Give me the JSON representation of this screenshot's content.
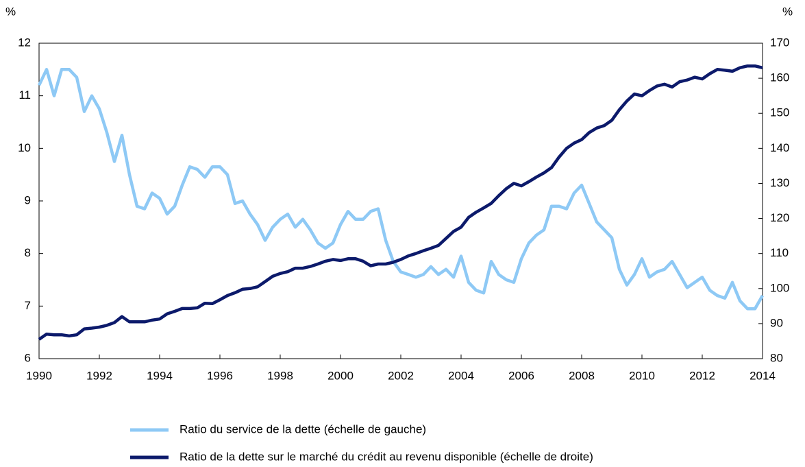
{
  "chart_data": {
    "type": "line",
    "ylabel": "%",
    "y2label": "%",
    "x": [
      1990,
      1990.25,
      1990.5,
      1990.75,
      1991,
      1991.25,
      1991.5,
      1991.75,
      1992,
      1992.25,
      1992.5,
      1992.75,
      1993,
      1993.25,
      1993.5,
      1993.75,
      1994,
      1994.25,
      1994.5,
      1994.75,
      1995,
      1995.25,
      1995.5,
      1995.75,
      1996,
      1996.25,
      1996.5,
      1996.75,
      1997,
      1997.25,
      1997.5,
      1997.75,
      1998,
      1998.25,
      1998.5,
      1998.75,
      1999,
      1999.25,
      1999.5,
      1999.75,
      2000,
      2000.25,
      2000.5,
      2000.75,
      2001,
      2001.25,
      2001.5,
      2001.75,
      2002,
      2002.25,
      2002.5,
      2002.75,
      2003,
      2003.25,
      2003.5,
      2003.75,
      2004,
      2004.25,
      2004.5,
      2004.75,
      2005,
      2005.25,
      2005.5,
      2005.75,
      2006,
      2006.25,
      2006.5,
      2006.75,
      2007,
      2007.25,
      2007.5,
      2007.75,
      2008,
      2008.25,
      2008.5,
      2008.75,
      2009,
      2009.25,
      2009.5,
      2009.75,
      2010,
      2010.25,
      2010.5,
      2010.75,
      2011,
      2011.25,
      2011.5,
      2011.75,
      2012,
      2012.25,
      2012.5,
      2012.75,
      2013,
      2013.25,
      2013.5,
      2013.75,
      2014
    ],
    "xlim": [
      1990,
      2014
    ],
    "xticks": [
      1990,
      1992,
      1994,
      1996,
      1998,
      2000,
      2002,
      2004,
      2006,
      2008,
      2010,
      2012,
      2014
    ],
    "ylim": [
      6,
      12
    ],
    "yticks": [
      6,
      7,
      8,
      9,
      10,
      11,
      12
    ],
    "y2lim": [
      80,
      170
    ],
    "y2ticks": [
      80,
      90,
      100,
      110,
      120,
      130,
      140,
      150,
      160,
      170
    ],
    "legend": "bottom",
    "series": [
      {
        "name": "Ratio du service de la dette (échelle de gauche)",
        "color": "#8ec9f5",
        "values": [
          11.2,
          11.5,
          11.0,
          11.5,
          11.5,
          11.35,
          10.7,
          11.0,
          10.75,
          10.3,
          9.75,
          10.25,
          9.5,
          8.9,
          8.85,
          9.15,
          9.05,
          8.75,
          8.9,
          9.3,
          9.65,
          9.6,
          9.45,
          9.65,
          9.65,
          9.5,
          8.95,
          9.0,
          8.75,
          8.55,
          8.25,
          8.5,
          8.65,
          8.75,
          8.5,
          8.65,
          8.45,
          8.2,
          8.1,
          8.2,
          8.55,
          8.8,
          8.65,
          8.65,
          8.8,
          8.85,
          8.25,
          7.85,
          7.65,
          7.6,
          7.55,
          7.6,
          7.75,
          7.6,
          7.7,
          7.55,
          7.95,
          7.45,
          7.3,
          7.25,
          7.85,
          7.6,
          7.5,
          7.45,
          7.9,
          8.2,
          8.35,
          8.45,
          8.9,
          8.9,
          8.85,
          9.15,
          9.3,
          8.95,
          8.6,
          8.45,
          8.3,
          7.7,
          7.4,
          7.6,
          7.9,
          7.55,
          7.65,
          7.7,
          7.85,
          7.6,
          7.35,
          7.45,
          7.55,
          7.3,
          7.2,
          7.15,
          7.45,
          7.1,
          6.95,
          6.95,
          7.2
        ]
      },
      {
        "name": "Ratio de la dette sur le marché du crédit au revenu disponible (échelle de droite)",
        "color": "#0c1a6b",
        "axis": "y2",
        "values": [
          85.5,
          87,
          86.8,
          86.8,
          86.5,
          86.8,
          88.5,
          88.7,
          89,
          89.5,
          90.3,
          92,
          90.5,
          90.5,
          90.5,
          91,
          91.3,
          92.8,
          93.5,
          94.3,
          94.3,
          94.5,
          95.8,
          95.7,
          96.8,
          98,
          98.8,
          99.8,
          100,
          100.5,
          102,
          103.5,
          104.3,
          104.8,
          105.8,
          105.8,
          106.3,
          107,
          107.8,
          108.3,
          108,
          108.5,
          108.5,
          107.8,
          106.5,
          107,
          107,
          107.5,
          108.3,
          109.3,
          110,
          110.8,
          111.5,
          112.3,
          114.3,
          116.3,
          117.5,
          120.3,
          121.8,
          123,
          124.3,
          126.5,
          128.5,
          130,
          129.3,
          130.5,
          131.8,
          133,
          134.5,
          137.5,
          140,
          141.5,
          142.5,
          144.5,
          145.8,
          146.5,
          148,
          151,
          153.5,
          155.5,
          155,
          156.5,
          157.8,
          158.3,
          157.5,
          159,
          159.5,
          160.3,
          159.8,
          161.3,
          162.5,
          162.3,
          162,
          163,
          163.5,
          163.5,
          163
        ]
      }
    ]
  }
}
